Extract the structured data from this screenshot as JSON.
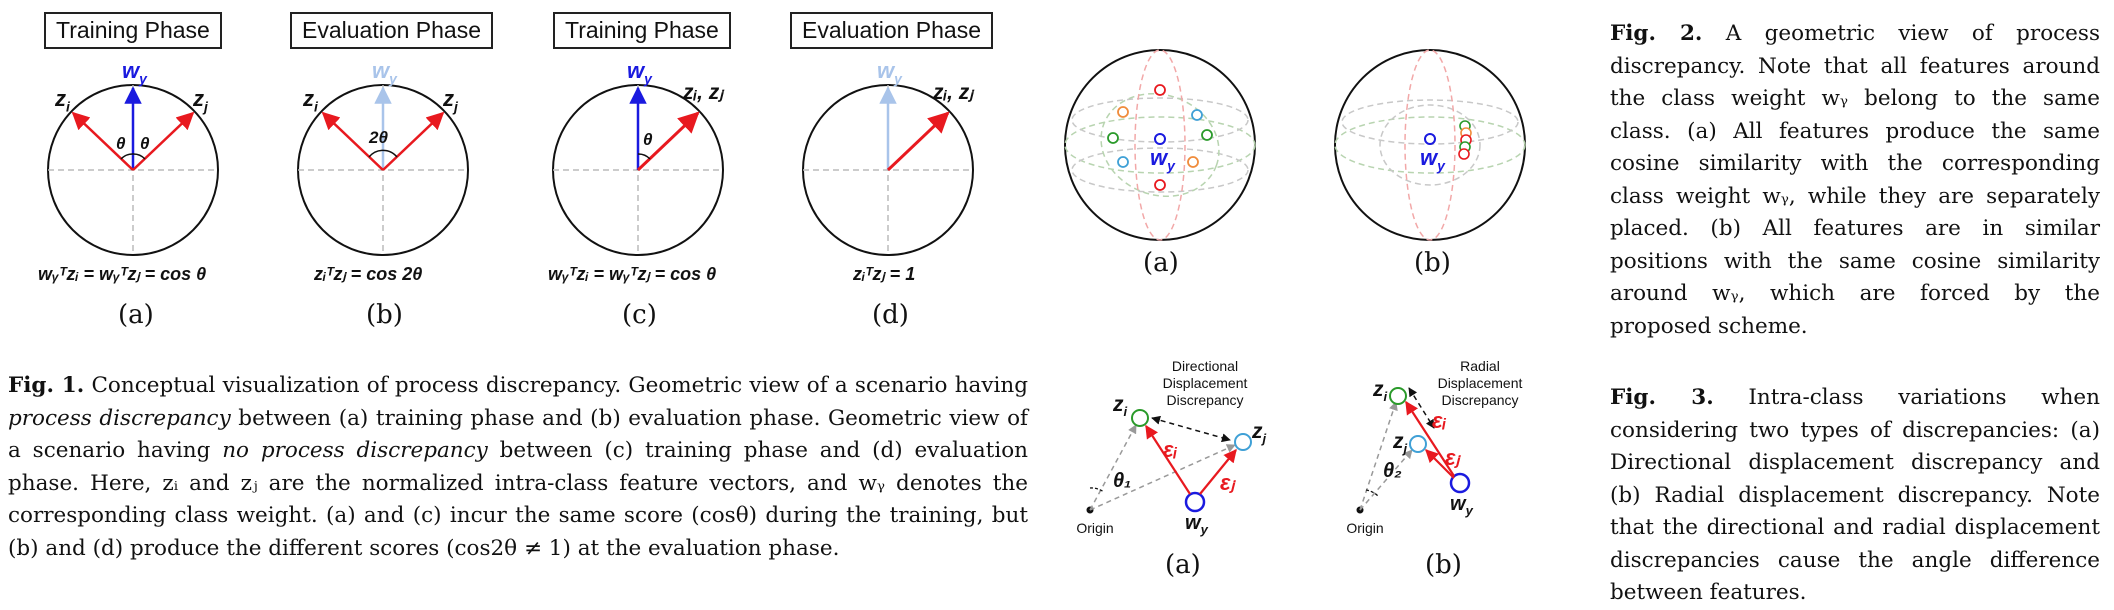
{
  "fig1": {
    "panels": [
      {
        "phase": "Training Phase",
        "sub": "(a)",
        "eq": "wᵧᵀzᵢ = wᵧᵀzⱼ = cos θ"
      },
      {
        "phase": "Evaluation Phase",
        "sub": "(b)",
        "eq": "zᵢᵀzⱼ = cos 2θ"
      },
      {
        "phase": "Training Phase",
        "sub": "(c)",
        "eq": "wᵧᵀzᵢ = wᵧᵀzⱼ = cos θ"
      },
      {
        "phase": "Evaluation Phase",
        "sub": "(d)",
        "eq": "zᵢᵀzⱼ = 1"
      }
    ],
    "vector_labels": {
      "wy": "w",
      "wy_sub": "y",
      "zi": "z",
      "zi_sub": "i",
      "zj": "z",
      "zj_sub": "j",
      "zizj": "zᵢ, zⱼ"
    },
    "angle_labels": {
      "theta": "θ",
      "two_theta": "2θ"
    },
    "caption_label": "Fig. 1.",
    "caption_p1": " Conceptual visualization of process discrepancy. Geometric view of a scenario having ",
    "caption_em1": "process discrepancy",
    "caption_p2": " between (a) training phase and (b) evaluation phase. Geometric view of a scenario having ",
    "caption_em2": "no process discrepancy",
    "caption_p3": " between (c) training phase and (d) evaluation phase. Here, zᵢ and zⱼ are the normalized intra-class feature vectors, and wᵧ denotes the corresponding class weight. (a) and (c) incur the same score (cosθ) during the training, but (b) and (d) produce the different scores (cos2θ ≠ 1) at the evaluation phase."
  },
  "fig2": {
    "sub_a": "(a)",
    "sub_b": "(b)",
    "wy_label": "w",
    "wy_sub": "y",
    "caption_label": "Fig. 2.",
    "caption_text": " A geometric view of process discrepancy. Note that all features around the class weight wᵧ belong to the same class. (a) All features produce the same cosine similarity with the corresponding class weight wᵧ, while they are separately placed. (b) All features are in similar positions with the same cosine similarity around wᵧ, which are forced by the proposed scheme."
  },
  "fig3": {
    "a": {
      "title_lines": [
        "Directional",
        "Displacement",
        "Discrepancy"
      ],
      "origin": "Origin",
      "theta": "θ₁",
      "eps_i": "εᵢ",
      "eps_j": "εⱼ",
      "sub": "(a)"
    },
    "b": {
      "title_lines": [
        "Radial",
        "Displacement",
        "Discrepancy"
      ],
      "origin": "Origin",
      "theta": "θ₂",
      "eps_i": "εᵢ",
      "eps_j": "εⱼ",
      "sub": "(b)"
    },
    "caption_label": "Fig. 3.",
    "caption_text": " Intra-class variations when considering two types of discrepancies: (a) Directional displacement discrepancy and (b) Radial displacement discrepancy. Note that the directional and radial displacement discrepancies cause the angle difference between features."
  },
  "colors": {
    "red": "#e8191f",
    "blue": "#1a1adf",
    "light_blue": "#a9c4ea",
    "green": "#2a9a2a",
    "orange": "#f08c3c",
    "cyan": "#3fa0d6",
    "gray_dash": "#9a9a9a"
  }
}
